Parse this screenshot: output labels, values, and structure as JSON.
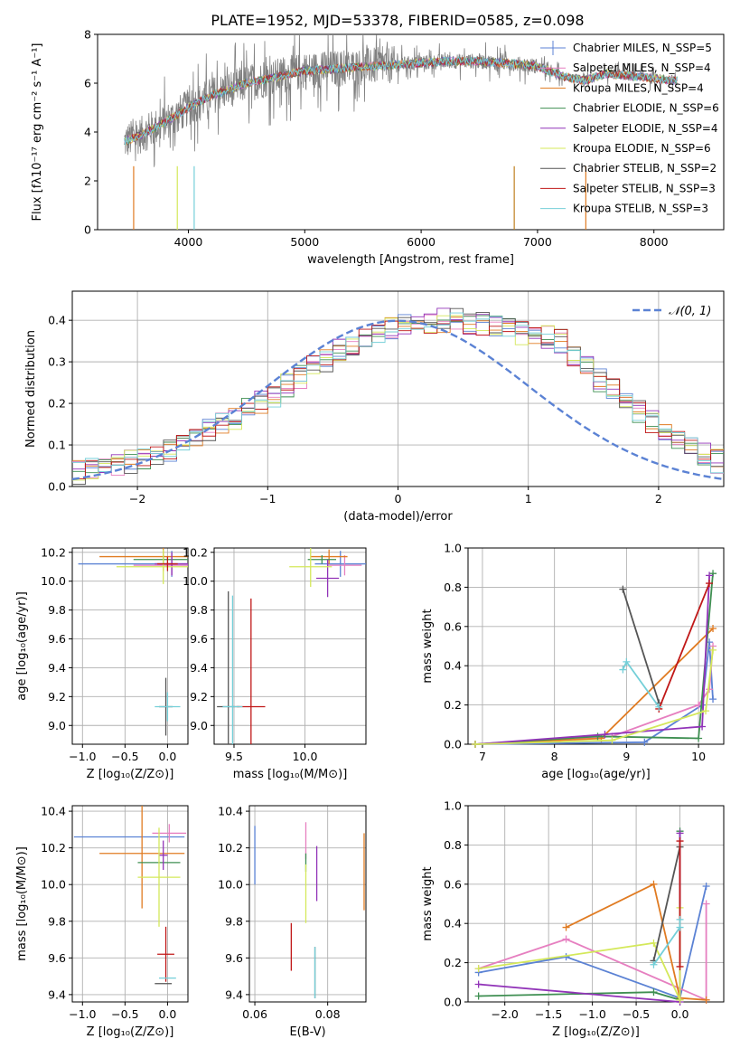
{
  "chart_data": [
    {
      "id": "spectrum",
      "type": "line",
      "title": "PLATE=1952, MJD=53378, FIBERID=0585, z=0.098",
      "xlabel": "wavelength [Angstrom, rest frame]",
      "ylabel": "Flux [fλ10⁻¹⁷ erg cm⁻² s⁻¹ A⁻¹]",
      "xlim": [
        3220,
        8600
      ],
      "ylim": [
        0,
        8
      ],
      "xticks": [
        "4000",
        "5000",
        "6000",
        "7000",
        "8000"
      ],
      "yticks": [
        "0",
        "2",
        "4",
        "6",
        "8"
      ],
      "data_series": "observed spectrum (grey)",
      "legend": [
        {
          "name": "Chabrier MILES, N_SSP=5",
          "color": "#5b82d4"
        },
        {
          "name": "Salpeter MILES, N_SSP=4",
          "color": "#e67fc0"
        },
        {
          "name": "Kroupa MILES, N_SSP=4",
          "color": "#e07b22"
        },
        {
          "name": "Chabrier ELODIE, N_SSP=6",
          "color": "#3f8f52"
        },
        {
          "name": "Salpeter ELODIE, N_SSP=4",
          "color": "#9133b8"
        },
        {
          "name": "Kroupa ELODIE, N_SSP=6",
          "color": "#d4e85a"
        },
        {
          "name": "Chabrier STELIB, N_SSP=2",
          "color": "#555555"
        },
        {
          "name": "Salpeter STELIB, N_SSP=3",
          "color": "#c01818"
        },
        {
          "name": "Kroupa STELIB, N_SSP=3",
          "color": "#74cfd8"
        }
      ],
      "model_curve": {
        "x": [
          3450,
          3600,
          3800,
          4000,
          4200,
          4500,
          4800,
          5000,
          5300,
          5600,
          5900,
          6200,
          6500,
          6800,
          7000,
          7200,
          7400,
          7600,
          7800,
          8000,
          8200
        ],
        "y": [
          3.6,
          3.9,
          4.4,
          5.0,
          5.5,
          6.0,
          6.3,
          6.5,
          6.6,
          6.7,
          6.8,
          6.9,
          6.9,
          6.8,
          6.7,
          6.3,
          6.1,
          6.4,
          6.3,
          6.2,
          6.1
        ]
      }
    },
    {
      "id": "residuals",
      "type": "histogram",
      "xlabel": "(data-model)/error",
      "ylabel": "Normed distribution",
      "xlim": [
        -2.5,
        2.5
      ],
      "ylim": [
        0,
        0.47
      ],
      "xticks": [
        "−2",
        "−1",
        "0",
        "1",
        "2"
      ],
      "yticks": [
        "0.0",
        "0.1",
        "0.2",
        "0.3",
        "0.4"
      ],
      "legend": [
        {
          "name": "𝒩(0, 1)",
          "color": "#5b82d4",
          "style": "dashed"
        }
      ],
      "bin_width": 0.1,
      "base_density": [
        0.035,
        0.04,
        0.045,
        0.05,
        0.06,
        0.07,
        0.08,
        0.09,
        0.105,
        0.12,
        0.135,
        0.15,
        0.165,
        0.185,
        0.2,
        0.22,
        0.245,
        0.265,
        0.285,
        0.305,
        0.325,
        0.34,
        0.355,
        0.37,
        0.38,
        0.39,
        0.395,
        0.395,
        0.4,
        0.4,
        0.395,
        0.39,
        0.38,
        0.375,
        0.37,
        0.365,
        0.36,
        0.35,
        0.32,
        0.29,
        0.255,
        0.23,
        0.205,
        0.18,
        0.155,
        0.13,
        0.11,
        0.09,
        0.075,
        0.06
      ]
    },
    {
      "id": "age-vs-Z",
      "type": "scatter",
      "xlabel": "Z [log₁₀(Z/Z⊙)]",
      "ylabel": "age  [log₁₀(age/yr)]",
      "xlim": [
        -1.12,
        0.24
      ],
      "ylim": [
        8.87,
        10.23
      ],
      "xticks": [
        "−1.0",
        "−0.5",
        "0.0"
      ],
      "yticks": [
        "9.0",
        "9.2",
        "9.4",
        "9.6",
        "9.8",
        "10.0",
        "10.2"
      ],
      "points": [
        {
          "color": "#5b82d4",
          "x": 0.05,
          "y": 10.12,
          "xerr": 1.1,
          "yerr": 0.09
        },
        {
          "color": "#e67fc0",
          "x": 0.05,
          "y": 10.11,
          "xerr": 0.45,
          "yerr": 0.07
        },
        {
          "color": "#e07b22",
          "x": -0.05,
          "y": 10.17,
          "xerr": 0.75,
          "yerr": 0.1
        },
        {
          "color": "#3f8f52",
          "x": -0.05,
          "y": 10.15,
          "xerr": 0.35,
          "yerr": 0.03
        },
        {
          "color": "#9133b8",
          "x": 0.05,
          "y": 10.12,
          "xerr": 0.2,
          "yerr": 0.08
        },
        {
          "color": "#d4e85a",
          "x": -0.05,
          "y": 10.1,
          "xerr": 0.55,
          "yerr": 0.12
        },
        {
          "color": "#555555",
          "x": -0.02,
          "y": 9.13,
          "xerr": 0.08,
          "yerr": 0.2
        },
        {
          "color": "#c01818",
          "x": 0.0,
          "y": 10.12,
          "xerr": 0.12,
          "yerr": 0.05
        },
        {
          "color": "#74cfd8",
          "x": 0.0,
          "y": 9.13,
          "xerr": 0.15,
          "yerr": 0.1
        }
      ]
    },
    {
      "id": "age-vs-mass",
      "type": "scatter",
      "xlabel": "mass [log₁₀(M/M⊙)]",
      "ylabel": "",
      "xlim": [
        9.36,
        10.43
      ],
      "ylim": [
        8.87,
        10.23
      ],
      "xticks": [
        "9.5",
        "10.0"
      ],
      "yticks": [
        "9.0",
        "9.2",
        "9.4",
        "9.6",
        "9.8",
        "10.0",
        "10.2"
      ],
      "points": [
        {
          "color": "#5b82d4",
          "x": 10.25,
          "y": 10.12,
          "xerr": 0.18,
          "yerr": 0.09
        },
        {
          "color": "#e67fc0",
          "x": 10.28,
          "y": 10.11,
          "xerr": 0.12,
          "yerr": 0.07
        },
        {
          "color": "#e07b22",
          "x": 10.17,
          "y": 10.17,
          "xerr": 0.13,
          "yerr": 0.05
        },
        {
          "color": "#3f8f52",
          "x": 10.12,
          "y": 10.15,
          "xerr": 0.1,
          "yerr": 0.03
        },
        {
          "color": "#9133b8",
          "x": 10.16,
          "y": 10.02,
          "xerr": 0.08,
          "yerr": 0.13
        },
        {
          "color": "#d4e85a",
          "x": 10.04,
          "y": 10.1,
          "xerr": 0.15,
          "yerr": 0.14
        },
        {
          "color": "#555555",
          "x": 9.46,
          "y": 9.13,
          "xerr": 0.08,
          "yerr": 0.8
        },
        {
          "color": "#c01818",
          "x": 9.62,
          "y": 9.13,
          "xerr": 0.1,
          "yerr": 0.75
        },
        {
          "color": "#74cfd8",
          "x": 9.49,
          "y": 9.13,
          "xerr": 0.07,
          "yerr": 0.77
        }
      ]
    },
    {
      "id": "weight-vs-age",
      "type": "line",
      "xlabel": "age  [log₁₀(age/yr)]",
      "ylabel": "mass weight",
      "xlim": [
        6.8,
        10.35
      ],
      "ylim": [
        0,
        1
      ],
      "xticks": [
        "7",
        "8",
        "9",
        "10"
      ],
      "yticks": [
        "0.0",
        "0.2",
        "0.4",
        "0.6",
        "0.8",
        "1.0"
      ],
      "series": [
        {
          "color": "#5b82d4",
          "x": [
            6.9,
            9.25,
            10.05,
            10.15,
            10.2
          ],
          "y": [
            0.0,
            0.01,
            0.2,
            0.52,
            0.23
          ]
        },
        {
          "color": "#e67fc0",
          "x": [
            6.9,
            8.8,
            10.0,
            10.15,
            10.2
          ],
          "y": [
            0.0,
            0.04,
            0.2,
            0.28,
            0.5
          ]
        },
        {
          "color": "#e07b22",
          "x": [
            6.9,
            8.65,
            10.2
          ],
          "y": [
            0.0,
            0.03,
            0.59
          ]
        },
        {
          "color": "#3f8f52",
          "x": [
            6.9,
            8.6,
            10.0,
            10.2
          ],
          "y": [
            0.0,
            0.04,
            0.03,
            0.87
          ]
        },
        {
          "color": "#9133b8",
          "x": [
            6.9,
            8.7,
            10.05,
            10.15
          ],
          "y": [
            0.0,
            0.05,
            0.09,
            0.86
          ]
        },
        {
          "color": "#d4e85a",
          "x": [
            6.9,
            8.8,
            10.1,
            10.2
          ],
          "y": [
            0.0,
            0.02,
            0.17,
            0.48
          ]
        },
        {
          "color": "#555555",
          "x": [
            8.95,
            9.45
          ],
          "y": [
            0.79,
            0.21
          ]
        },
        {
          "color": "#c01818",
          "x": [
            9.45,
            10.15
          ],
          "y": [
            0.18,
            0.82
          ]
        },
        {
          "color": "#74cfd8",
          "x": [
            8.95,
            9.0,
            9.45
          ],
          "y": [
            0.38,
            0.42,
            0.19
          ]
        }
      ]
    },
    {
      "id": "mass-vs-Z",
      "type": "scatter",
      "xlabel": "Z [log₁₀(Z/Z⊙)]",
      "ylabel": "mass [log₁₀(M/M⊙)]",
      "xlim": [
        -1.12,
        0.24
      ],
      "ylim": [
        9.36,
        10.43
      ],
      "xticks": [
        "−1.0",
        "−0.5",
        "0.0"
      ],
      "yticks": [
        "9.4",
        "9.6",
        "9.8",
        "10.0",
        "10.2",
        "10.4"
      ],
      "points": [
        {
          "color": "#5b82d4",
          "x": -0.45,
          "y": 10.26,
          "xerr": 0.65,
          "yerr": 0.0
        },
        {
          "color": "#e67fc0",
          "x": 0.02,
          "y": 10.28,
          "xerr": 0.2,
          "yerr": 0.05
        },
        {
          "color": "#e07b22",
          "x": -0.3,
          "y": 10.17,
          "xerr": 0.5,
          "yerr": 0.3
        },
        {
          "color": "#3f8f52",
          "x": -0.1,
          "y": 10.12,
          "xerr": 0.25,
          "yerr": 0.0
        },
        {
          "color": "#9133b8",
          "x": -0.05,
          "y": 10.16,
          "xerr": 0.05,
          "yerr": 0.08
        },
        {
          "color": "#d4e85a",
          "x": -0.1,
          "y": 10.04,
          "xerr": 0.25,
          "yerr": 0.27
        },
        {
          "color": "#555555",
          "x": -0.05,
          "y": 9.46,
          "xerr": 0.1,
          "yerr": 0.0
        },
        {
          "color": "#c01818",
          "x": -0.02,
          "y": 9.62,
          "xerr": 0.1,
          "yerr": 0.15
        },
        {
          "color": "#74cfd8",
          "x": 0.0,
          "y": 9.49,
          "xerr": 0.1,
          "yerr": 0.0
        }
      ]
    },
    {
      "id": "mass-vs-EBV",
      "type": "scatter",
      "xlabel": "E(B-V)",
      "ylabel": "",
      "xlim": [
        0.0585,
        0.0905
      ],
      "ylim": [
        9.36,
        10.43
      ],
      "xticks": [
        "0.06",
        "0.08"
      ],
      "yticks": [
        "9.4",
        "9.6",
        "9.8",
        "10.0",
        "10.2",
        "10.4"
      ],
      "points": [
        {
          "color": "#5b82d4",
          "x": 0.06,
          "y": 10.16,
          "xerr": 0.0,
          "yerr": 0.16
        },
        {
          "color": "#e67fc0",
          "x": 0.074,
          "y": 10.24,
          "xerr": 0.0,
          "yerr": 0.1
        },
        {
          "color": "#e07b22",
          "x": 0.09,
          "y": 10.07,
          "xerr": 0.0,
          "yerr": 0.21
        },
        {
          "color": "#3f8f52",
          "x": 0.074,
          "y": 10.12,
          "xerr": 0.0,
          "yerr": 0.05
        },
        {
          "color": "#9133b8",
          "x": 0.077,
          "y": 10.06,
          "xerr": 0.0,
          "yerr": 0.15
        },
        {
          "color": "#d4e85a",
          "x": 0.074,
          "y": 9.95,
          "xerr": 0.0,
          "yerr": 0.16
        },
        {
          "color": "#555555",
          "x": 0.0765,
          "y": 9.52,
          "xerr": 0.0,
          "yerr": 0.14
        },
        {
          "color": "#c01818",
          "x": 0.07,
          "y": 9.66,
          "xerr": 0.0,
          "yerr": 0.13
        },
        {
          "color": "#74cfd8",
          "x": 0.0765,
          "y": 9.52,
          "xerr": 0.0,
          "yerr": 0.14
        }
      ]
    },
    {
      "id": "weight-vs-Z",
      "type": "line",
      "xlabel": "Z [log₁₀(Z/Z⊙)]",
      "ylabel": "mass weight",
      "xlim": [
        -2.42,
        0.5
      ],
      "ylim": [
        0,
        1
      ],
      "xticks": [
        "−2.0",
        "−1.5",
        "−1.0",
        "−0.5",
        "0.0"
      ],
      "yticks": [
        "0.0",
        "0.2",
        "0.4",
        "0.6",
        "0.8",
        "1.0"
      ],
      "series": [
        {
          "color": "#5b82d4",
          "x": [
            -2.3,
            -1.3,
            0.0,
            0.3
          ],
          "y": [
            0.15,
            0.23,
            0.02,
            0.59
          ]
        },
        {
          "color": "#e67fc0",
          "x": [
            -2.3,
            -1.3,
            0.3,
            0.3
          ],
          "y": [
            0.17,
            0.32,
            0.01,
            0.5
          ]
        },
        {
          "color": "#e07b22",
          "x": [
            -1.3,
            -0.3,
            0.0,
            0.3
          ],
          "y": [
            0.38,
            0.6,
            0.02,
            0.01
          ]
        },
        {
          "color": "#3f8f52",
          "x": [
            -2.3,
            -0.3,
            0.0,
            0.0
          ],
          "y": [
            0.03,
            0.05,
            0.01,
            0.87
          ]
        },
        {
          "color": "#9133b8",
          "x": [
            -2.3,
            0.0,
            0.0
          ],
          "y": [
            0.09,
            0.0,
            0.86
          ]
        },
        {
          "color": "#d4e85a",
          "x": [
            -2.3,
            -0.3,
            0.0,
            0.0
          ],
          "y": [
            0.17,
            0.3,
            0.01,
            0.48
          ]
        },
        {
          "color": "#555555",
          "x": [
            -0.3,
            0.0
          ],
          "y": [
            0.21,
            0.79
          ]
        },
        {
          "color": "#c01818",
          "x": [
            0.0,
            0.0
          ],
          "y": [
            0.18,
            0.82
          ]
        },
        {
          "color": "#74cfd8",
          "x": [
            -0.3,
            0.0,
            0.0
          ],
          "y": [
            0.19,
            0.38,
            0.42
          ]
        }
      ]
    }
  ]
}
